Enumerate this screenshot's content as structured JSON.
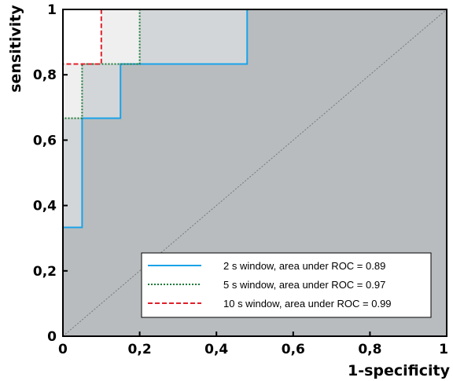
{
  "chart_data": {
    "type": "line",
    "title": "",
    "xlabel": "1-specificity",
    "ylabel": "sensitivity",
    "xlim": [
      0,
      1
    ],
    "ylim": [
      0,
      1
    ],
    "xtick_labels": [
      "0",
      "0,2",
      "0,4",
      "0,6",
      "0,8",
      "1"
    ],
    "ytick_labels": [
      "0",
      "0,2",
      "0,4",
      "0,6",
      "0,8",
      "1"
    ],
    "grid": false,
    "legend_position": "bottom-right",
    "reference_line": "diagonal",
    "series": [
      {
        "name": "2 s window, area under ROC = 0.89",
        "color": "#1aa3e8",
        "dash": "solid",
        "x": [
          0,
          0,
          0.05,
          0.05,
          0.15,
          0.15,
          0.48,
          0.48,
          1
        ],
        "y": [
          0,
          0.333,
          0.333,
          0.667,
          0.667,
          0.833,
          0.833,
          1,
          1
        ]
      },
      {
        "name": "5 s window, area under ROC = 0.97",
        "color": "#1d7a3a",
        "dash": "dotted",
        "x": [
          0,
          0,
          0.05,
          0.05,
          0.2,
          0.2,
          1
        ],
        "y": [
          0,
          0.667,
          0.667,
          0.833,
          0.833,
          1,
          1
        ]
      },
      {
        "name": "10 s window, area under ROC = 0.99",
        "color": "#e0202a",
        "dash": "dashed",
        "x": [
          0,
          0,
          0.1,
          0.1,
          1
        ],
        "y": [
          0,
          0.833,
          0.833,
          1,
          1
        ]
      }
    ]
  },
  "colors": {
    "plot_background": "#b8bcbe",
    "fill_2s": "#d3d6d8",
    "fill_5s": "#efefef",
    "fill_10s": "#ffffff",
    "diagonal": "#777777"
  }
}
